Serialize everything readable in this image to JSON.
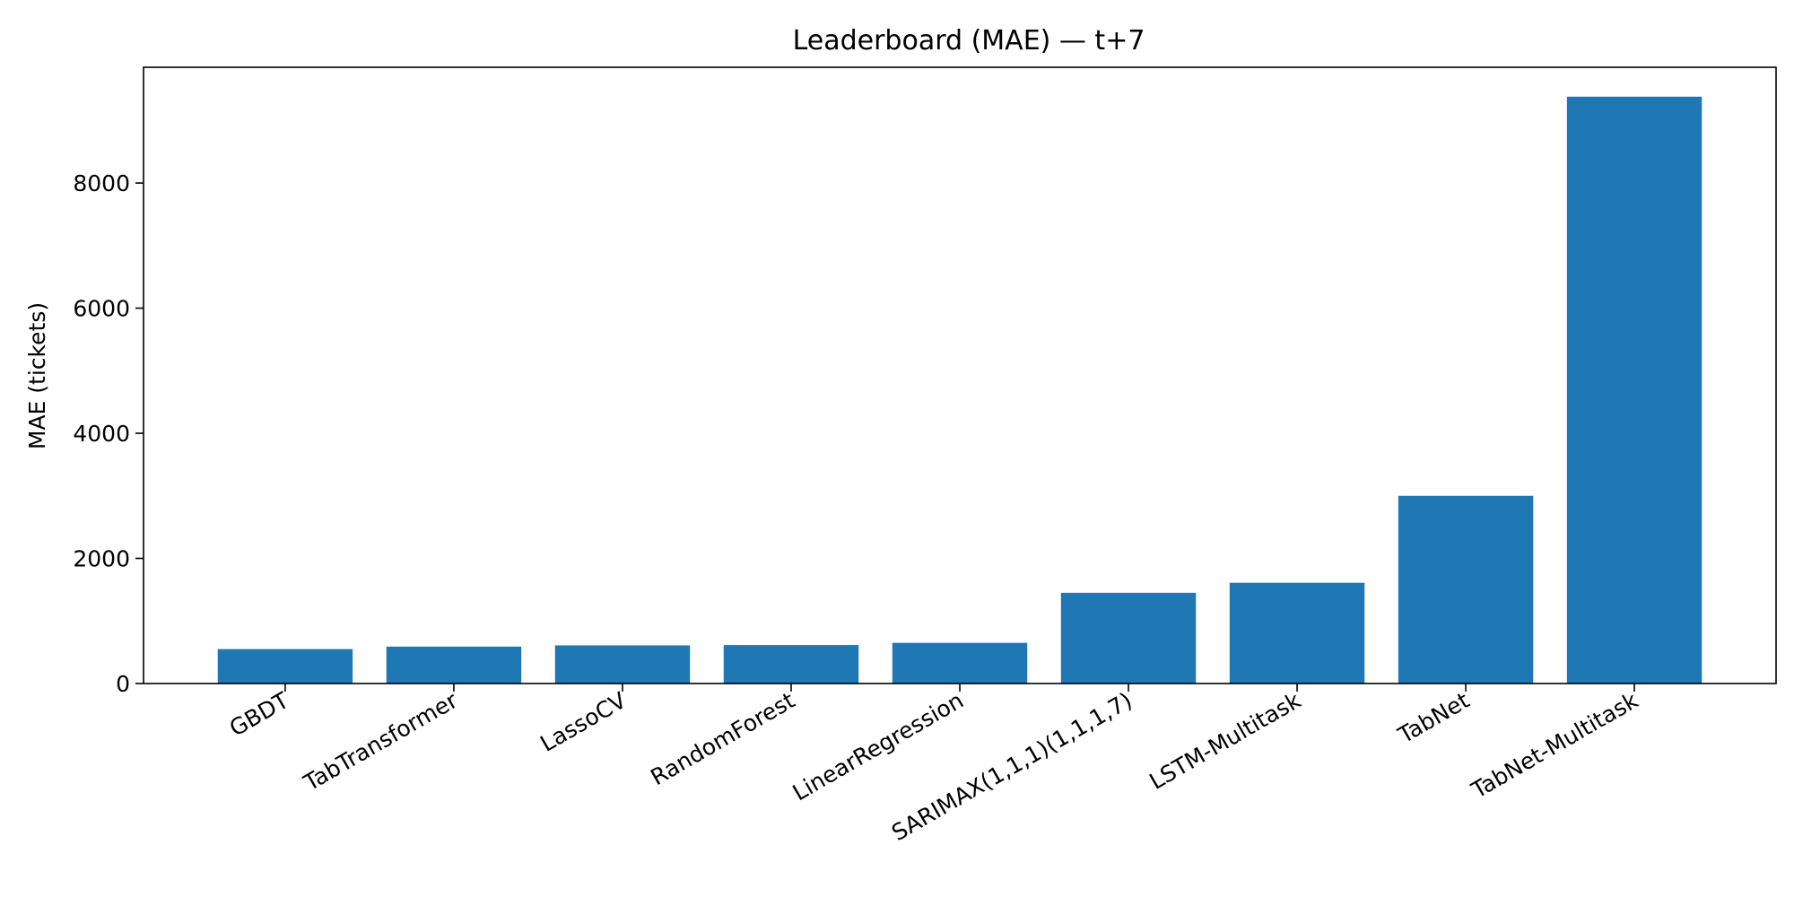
{
  "chart_data": {
    "type": "bar",
    "title": "Leaderboard (MAE) — t+7",
    "xlabel": "",
    "ylabel": "MAE (tickets)",
    "ylim": [
      0,
      9850
    ],
    "yticks": [
      0,
      2000,
      4000,
      6000,
      8000
    ],
    "ytick_labels": [
      "0",
      "2000",
      "4000",
      "6000",
      "8000"
    ],
    "categories": [
      "GBDT",
      "TabTransformer",
      "LassoCV",
      "RandomForest",
      "LinearRegression",
      "SARIMAX(1,1,1)(1,1,1,7)",
      "LSTM-Multitask",
      "TabNet",
      "TabNet-Multitask"
    ],
    "values": [
      550,
      590,
      610,
      615,
      650,
      1450,
      1610,
      3000,
      9380
    ],
    "bar_color": "#1f77b4",
    "grid": false,
    "legend": "none"
  }
}
